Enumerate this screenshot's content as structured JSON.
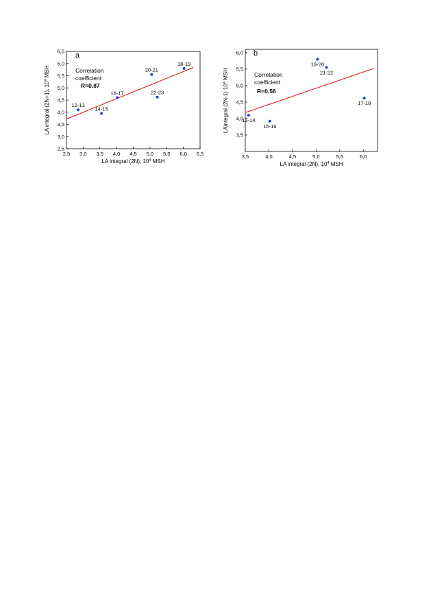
{
  "chart_data": [
    {
      "type": "scatter",
      "panel_label": "a",
      "xlabel": "LA integral (2N), 10",
      "xlabel_sup": "4",
      "xlabel_suffix": " MSH",
      "ylabel": "LA integral (2N+1), 10",
      "ylabel_sup": "4",
      "ylabel_suffix": " MSH",
      "xlim": [
        2.5,
        6.5
      ],
      "ylim": [
        2.5,
        6.5
      ],
      "xticks": [
        2.5,
        3.0,
        3.5,
        4.0,
        4.5,
        5.0,
        5.5,
        6.0,
        6.5
      ],
      "yticks": [
        2.5,
        3.0,
        3.5,
        4.0,
        4.5,
        5.0,
        5.5,
        6.0,
        6.5
      ],
      "tick_decimal": ",",
      "annotation_line1": "Correlation",
      "annotation_line2": "coefficient",
      "annotation_r": "R=0.87",
      "point_color": "#1f3fd6",
      "fit_color": "#e02020",
      "points": [
        {
          "label": "12-13",
          "x": 2.85,
          "y": 4.1,
          "label_pos": "above"
        },
        {
          "label": "14-15",
          "x": 3.55,
          "y": 3.95,
          "label_pos": "above"
        },
        {
          "label": "16-17",
          "x": 4.02,
          "y": 4.6,
          "label_pos": "above"
        },
        {
          "label": "20-21",
          "x": 5.05,
          "y": 5.55,
          "label_pos": "above"
        },
        {
          "label": "22-23",
          "x": 5.22,
          "y": 4.62,
          "label_pos": "above"
        },
        {
          "label": "18-19",
          "x": 6.02,
          "y": 5.8,
          "label_pos": "above"
        }
      ],
      "fit": {
        "x": [
          2.5,
          6.3
        ],
        "y": [
          3.72,
          5.84
        ]
      }
    },
    {
      "type": "scatter",
      "panel_label": "b",
      "xlabel": "LA integral (2N), 10",
      "xlabel_sup": "4",
      "xlabel_suffix": " MSH",
      "ylabel": "LAintegral (2N-1) 10",
      "ylabel_sup": "4",
      "ylabel_suffix": " MSH",
      "xlim": [
        3.5,
        6.3
      ],
      "ylim": [
        3.0,
        6.1
      ],
      "xticks": [
        3.5,
        4.0,
        4.5,
        5.0,
        5.5,
        6.0
      ],
      "yticks": [
        3.5,
        4.0,
        4.5,
        5.0,
        5.5,
        6.0
      ],
      "tick_decimal": ",",
      "annotation_line1": "Correlation",
      "annotation_line2": "coefficient",
      "annotation_r": "R=0.56",
      "point_color": "#1f3fd6",
      "fit_color": "#e02020",
      "points": [
        {
          "label": "13-14",
          "x": 3.57,
          "y": 4.1,
          "label_pos": "below"
        },
        {
          "label": "15-16",
          "x": 4.02,
          "y": 3.92,
          "label_pos": "below"
        },
        {
          "label": "19-20",
          "x": 5.03,
          "y": 5.8,
          "label_pos": "below"
        },
        {
          "label": "21-22",
          "x": 5.22,
          "y": 5.55,
          "label_pos": "below"
        },
        {
          "label": "17-18",
          "x": 6.02,
          "y": 4.62,
          "label_pos": "below"
        }
      ],
      "fit": {
        "x": [
          3.5,
          6.22
        ],
        "y": [
          4.18,
          5.52
        ]
      }
    }
  ]
}
